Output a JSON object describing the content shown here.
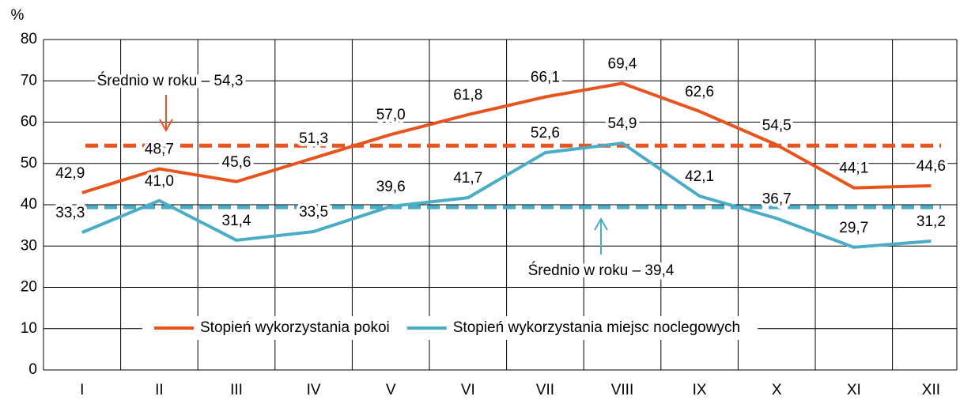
{
  "chart_data": {
    "type": "line",
    "y_label": "%",
    "categories": [
      "I",
      "II",
      "III",
      "IV",
      "V",
      "VI",
      "VII",
      "VIII",
      "IX",
      "X",
      "XI",
      "XII"
    ],
    "series": [
      {
        "name": "Stopień wykorzystania pokoi",
        "color": "#e8541e",
        "values": [
          42.9,
          48.7,
          45.6,
          51.3,
          57.0,
          61.8,
          66.1,
          69.4,
          62.6,
          54.5,
          44.1,
          44.6
        ],
        "value_labels": [
          "42,9",
          "48,7",
          "45,6",
          "51,3",
          "57,0",
          "61,8",
          "66,1",
          "69,4",
          "62,6",
          "54,5",
          "44,1",
          "44,6"
        ]
      },
      {
        "name": "Stopień wykorzystania miejsc noclegowych",
        "color": "#4bacc6",
        "values": [
          33.3,
          41.0,
          31.4,
          33.5,
          39.6,
          41.7,
          52.6,
          54.9,
          42.1,
          36.7,
          29.7,
          31.2
        ],
        "value_labels": [
          "33,3",
          "41,0",
          "31,4",
          "33,5",
          "39,6",
          "41,7",
          "52,6",
          "54,9",
          "42,1",
          "36,7",
          "29,7",
          "31,2"
        ]
      }
    ],
    "reference_lines": [
      {
        "value": 54.3,
        "label": "Średnio w roku – 54,3",
        "color": "#e8541e"
      },
      {
        "value": 39.4,
        "label": "Średnio w roku – 39,4",
        "color": "#4bacc6"
      }
    ],
    "ylim": [
      0,
      80
    ],
    "yticks": [
      0,
      10,
      20,
      30,
      40,
      50,
      60,
      70,
      80
    ],
    "grid": true,
    "legend": "bottom"
  }
}
